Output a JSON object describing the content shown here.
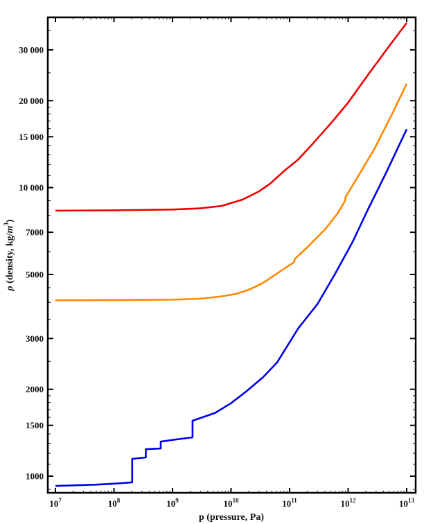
{
  "chart_data": {
    "type": "line",
    "title": "",
    "xlabel": "p (pressure, Pa)",
    "ylabel_prefix": "ρ",
    "ylabel": "ρ (density, kg/m³)",
    "ylabel_text": " (density, kg/",
    "ylabel_unit": "m",
    "ylabel_exp": "3",
    "ylabel_close": ")",
    "xscale": "log",
    "yscale": "log",
    "xlim": [
      10000000.0,
      10000000000000.0
    ],
    "ylim": [
      880,
      37500
    ],
    "grid": false,
    "legend": null,
    "x_ticks": [
      {
        "value": 10000000.0,
        "base": "10",
        "exp": "7"
      },
      {
        "value": 100000000.0,
        "base": "10",
        "exp": "8"
      },
      {
        "value": 1000000000.0,
        "base": "10",
        "exp": "9"
      },
      {
        "value": 10000000000.0,
        "base": "10",
        "exp": "10"
      },
      {
        "value": 100000000000.0,
        "base": "10",
        "exp": "11"
      },
      {
        "value": 1000000000000.0,
        "base": "10",
        "exp": "12"
      },
      {
        "value": 10000000000000.0,
        "base": "10",
        "exp": "13"
      }
    ],
    "y_ticks": [
      {
        "value": 1000,
        "label": "1000"
      },
      {
        "value": 1500,
        "label": "1500"
      },
      {
        "value": 2000,
        "label": "2000"
      },
      {
        "value": 3000,
        "label": "3000"
      },
      {
        "value": 5000,
        "label": "5000"
      },
      {
        "value": 7000,
        "label": "7000"
      },
      {
        "value": 10000,
        "label": "10 000"
      },
      {
        "value": 15000,
        "label": "15 000"
      },
      {
        "value": 20000,
        "label": "20 000"
      },
      {
        "value": 30000,
        "label": "30 000"
      }
    ],
    "series": [
      {
        "name": "red",
        "color": "#ee0000",
        "points": [
          [
            10000000.0,
            8320
          ],
          [
            100000000.0,
            8340
          ],
          [
            1000000000.0,
            8390
          ],
          [
            3000000000.0,
            8470
          ],
          [
            7000000000.0,
            8640
          ],
          [
            16000000000.0,
            9100
          ],
          [
            30000000000.0,
            9700
          ],
          [
            47000000000.0,
            10330
          ],
          [
            80000000000.0,
            11400
          ],
          [
            140000000000.0,
            12500
          ],
          [
            250000000000.0,
            14200
          ],
          [
            540000000000.0,
            16950
          ],
          [
            1000000000000.0,
            19700
          ],
          [
            2100000000000.0,
            24300
          ],
          [
            4500000000000.0,
            30000
          ],
          [
            10000000000000.0,
            37200
          ]
        ]
      },
      {
        "name": "orange",
        "color": "#ff8800",
        "points": [
          [
            10000000.0,
            4070
          ],
          [
            100000000.0,
            4075
          ],
          [
            1000000000.0,
            4090
          ],
          [
            3000000000.0,
            4120
          ],
          [
            7000000000.0,
            4200
          ],
          [
            12000000000.0,
            4280
          ],
          [
            20000000000.0,
            4420
          ],
          [
            35000000000.0,
            4670
          ],
          [
            60000000000.0,
            5030
          ],
          [
            120000000000.0,
            5520
          ],
          [
            122000000000.0,
            5650
          ],
          [
            200000000000.0,
            6200
          ],
          [
            410000000000.0,
            7190
          ],
          [
            650000000000.0,
            8100
          ],
          [
            890000000000.0,
            9000
          ],
          [
            900000000000.0,
            9250
          ],
          [
            1500000000000.0,
            11000
          ],
          [
            2800000000000.0,
            13600
          ],
          [
            5500000000000.0,
            17800
          ],
          [
            10000000000000.0,
            22900
          ]
        ]
      },
      {
        "name": "blue",
        "color": "#0000ee",
        "points": [
          [
            10000000.0,
            925
          ],
          [
            50000000.0,
            935
          ],
          [
            100000000.0,
            942
          ],
          [
            205000000.0,
            952
          ],
          [
            205000000.0,
            1148
          ],
          [
            350000000.0,
            1161
          ],
          [
            350000000.0,
            1240
          ],
          [
            630000000.0,
            1247
          ],
          [
            630000000.0,
            1318
          ],
          [
            1000000000.0,
            1335
          ],
          [
            2200000000.0,
            1363
          ],
          [
            2200000000.0,
            1556
          ],
          [
            5300000000.0,
            1655
          ],
          [
            10000000000.0,
            1790
          ],
          [
            18000000000.0,
            1963
          ],
          [
            35000000000.0,
            2200
          ],
          [
            61000000000.0,
            2477
          ],
          [
            140000000000.0,
            3247
          ],
          [
            300000000000.0,
            3950
          ],
          [
            600000000000.0,
            5030
          ],
          [
            1200000000000.0,
            6500
          ],
          [
            2100000000000.0,
            8265
          ],
          [
            4500000000000.0,
            11300
          ],
          [
            10000000000000.0,
            15930
          ]
        ]
      }
    ]
  }
}
